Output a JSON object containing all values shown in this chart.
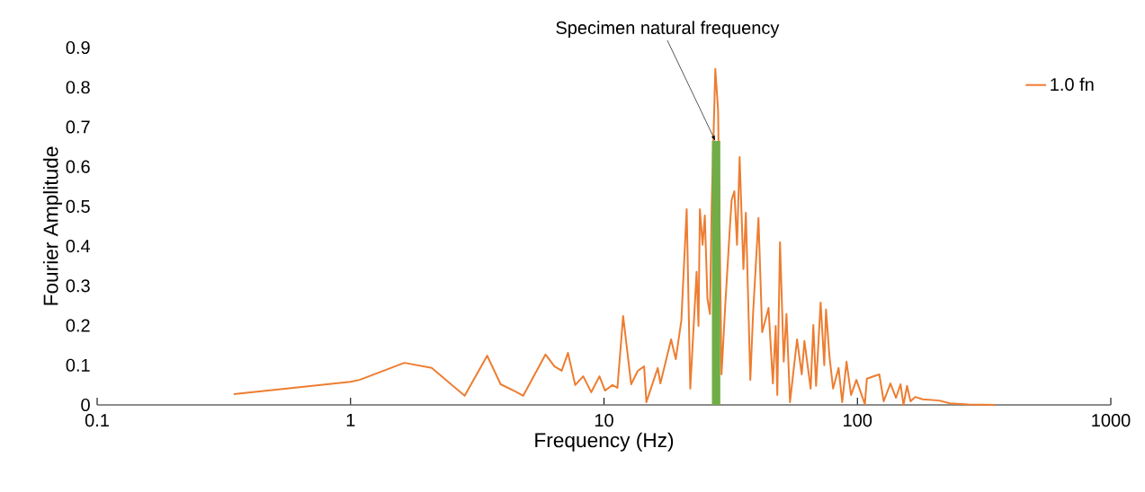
{
  "chart_data": {
    "type": "line",
    "xlabel": "Frequency (Hz)",
    "ylabel": "Fourier Amplitude",
    "log": "x",
    "xlim": [
      0.1,
      1000
    ],
    "xticks": [
      0.1,
      1,
      10,
      100,
      1000
    ],
    "ylim": [
      0,
      0.9
    ],
    "yticks": [
      0,
      0.1,
      0.2,
      0.3,
      0.4,
      0.5,
      0.6,
      0.7,
      0.8,
      0.9
    ],
    "legend": "top right",
    "annotations": [
      {
        "text": "Specimen natural frequency",
        "x": 27.5,
        "y": 0.665
      }
    ],
    "series": [
      {
        "name": "1.0 fn",
        "color": "#ed7d31",
        "x": [
          0.346,
          1,
          1.085,
          1.63,
          2.09,
          2.82,
          3.46,
          3.91,
          4.46,
          4.8,
          5.88,
          6.38,
          6.81,
          7.21,
          7.7,
          8.28,
          8.91,
          9.6,
          10.1,
          10.8,
          11.3,
          11.9,
          12.8,
          13.6,
          14.4,
          14.7,
          16.3,
          16.7,
          18.4,
          19.2,
          20.2,
          21.2,
          21.9,
          23.2,
          23.6,
          23.9,
          24.5,
          25.0,
          25.6,
          26.2,
          26.6,
          27.5,
          28.2,
          29.1,
          30.1,
          31.4,
          31.9,
          32.7,
          33.5,
          34.3,
          35.5,
          36.3,
          37.8,
          38.8,
          40.7,
          42.1,
          44.6,
          46.4,
          47.6,
          48.3,
          49.5,
          51.2,
          52.5,
          54.2,
          57.8,
          60.3,
          61.8,
          65.4,
          67.0,
          68.7,
          71.6,
          74.0,
          75.2,
          77.6,
          80.2,
          84.3,
          87.1,
          90.6,
          94.4,
          99.1,
          107,
          109,
          122,
          127,
          135,
          142,
          148,
          152,
          157,
          162,
          169,
          181,
          210,
          232,
          273,
          349
        ],
        "values": [
          0.027,
          0.058,
          0.063,
          0.106,
          0.093,
          0.023,
          0.124,
          0.052,
          0.034,
          0.023,
          0.127,
          0.097,
          0.086,
          0.131,
          0.05,
          0.072,
          0.032,
          0.072,
          0.036,
          0.05,
          0.043,
          0.224,
          0.052,
          0.086,
          0.097,
          0.007,
          0.093,
          0.054,
          0.165,
          0.115,
          0.213,
          0.493,
          0.041,
          0.335,
          0.199,
          0.493,
          0.403,
          0.477,
          0.267,
          0.229,
          0.5,
          0.846,
          0.742,
          0.077,
          0.251,
          0.448,
          0.516,
          0.538,
          0.403,
          0.624,
          0.342,
          0.484,
          0.063,
          0.235,
          0.471,
          0.183,
          0.244,
          0.054,
          0.199,
          0.025,
          0.41,
          0.109,
          0.229,
          0.007,
          0.165,
          0.077,
          0.161,
          0.041,
          0.201,
          0.048,
          0.258,
          0.1,
          0.24,
          0.122,
          0.041,
          0.093,
          0.007,
          0.109,
          0.025,
          0.063,
          0.002,
          0.066,
          0.077,
          0.009,
          0.054,
          0.018,
          0.052,
          0,
          0.048,
          0.009,
          0.02,
          0.014,
          0.011,
          0.004,
          0.001,
          0
        ]
      },
      {
        "type": "bar",
        "color": "#70ad47",
        "x": [
          27.7
        ],
        "values": [
          0.665
        ]
      }
    ]
  }
}
